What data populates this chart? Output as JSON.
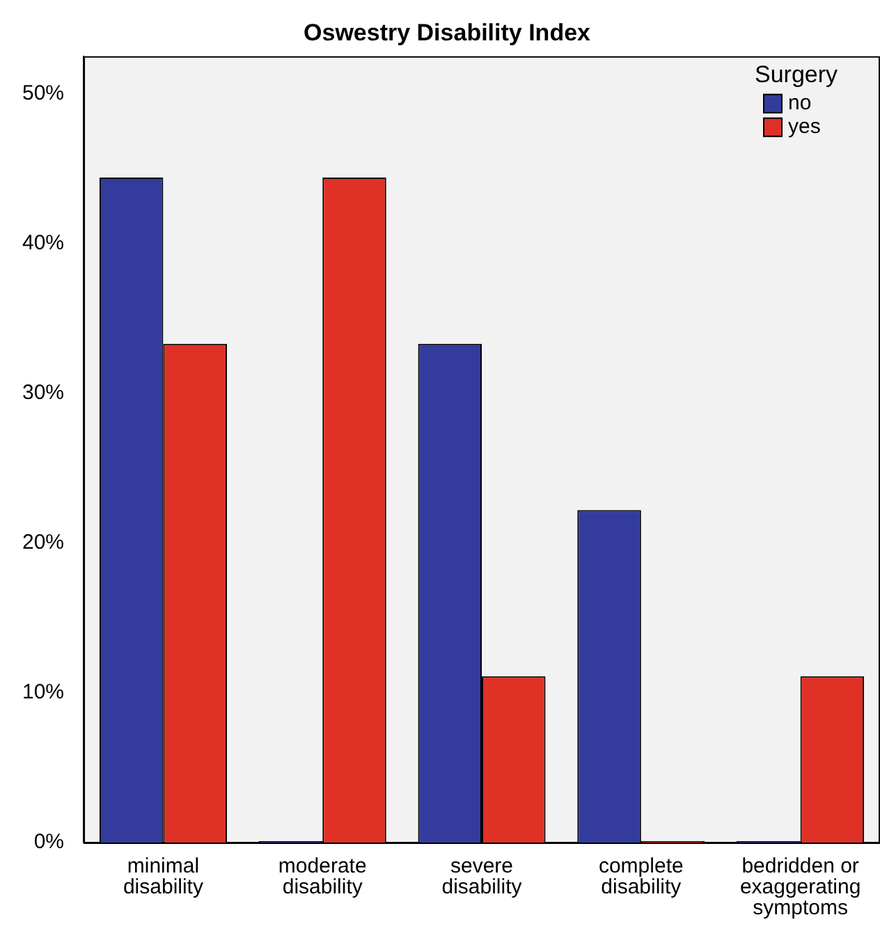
{
  "chart_data": {
    "type": "bar",
    "title": "Oswestry Disability Index",
    "legend_title": "Surgery",
    "categories": [
      "minimal disability",
      "moderate disability",
      "severe disability",
      "complete disability",
      "bedridden or exaggerating symptoms"
    ],
    "series": [
      {
        "name": "no",
        "color": "#333c9c",
        "values": [
          44.4,
          0,
          33.3,
          22.2,
          0
        ]
      },
      {
        "name": "yes",
        "color": "#e03126",
        "values": [
          33.3,
          44.4,
          11.1,
          0,
          11.1
        ]
      }
    ],
    "ylim": [
      0,
      52.5
    ],
    "yticks": [
      {
        "value": 0,
        "label": "0%"
      },
      {
        "value": 10,
        "label": "10%"
      },
      {
        "value": 20,
        "label": "20%"
      },
      {
        "value": 30,
        "label": "30%"
      },
      {
        "value": 40,
        "label": "40%"
      },
      {
        "value": 50,
        "label": "50%"
      }
    ],
    "grid": false,
    "legend": "top right"
  }
}
